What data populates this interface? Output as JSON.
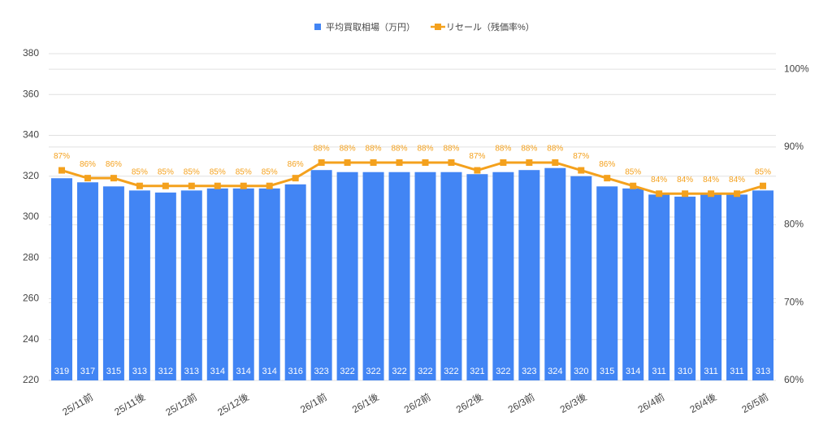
{
  "chart_data": {
    "type": "bar",
    "categories": [
      null,
      "25/11前",
      null,
      "25/11後",
      null,
      "25/12前",
      null,
      "25/12後",
      null,
      null,
      "26/1前",
      null,
      "26/1後",
      null,
      "26/2前",
      null,
      "26/2後",
      null,
      "26/3前",
      null,
      "26/3後",
      null,
      null,
      "26/4前",
      null,
      "26/4後",
      null,
      "26/5前"
    ],
    "series": [
      {
        "name": "平均買取相場（万円）",
        "color": "#4285f4",
        "type": "bar",
        "values": [
          319,
          317,
          315,
          313,
          312,
          313,
          314,
          314,
          314,
          316,
          323,
          322,
          322,
          322,
          322,
          322,
          321,
          322,
          323,
          324,
          320,
          315,
          314,
          311,
          310,
          311,
          311,
          313
        ]
      },
      {
        "name": "リセール（残価率%）",
        "color": "#f4a11d",
        "type": "line",
        "axis": "y2",
        "values": [
          87,
          86,
          86,
          85,
          85,
          85,
          85,
          85,
          85,
          86,
          88,
          88,
          88,
          88,
          88,
          88,
          87,
          88,
          88,
          88,
          87,
          86,
          85,
          84,
          84,
          84,
          84,
          85
        ],
        "value_labels": [
          "87%",
          "86%",
          "86%",
          "85%",
          "85%",
          "85%",
          "85%",
          "85%",
          "85%",
          "86%",
          "88%",
          "88%",
          "88%",
          "88%",
          "88%",
          "88%",
          "87%",
          "88%",
          "88%",
          "88%",
          "87%",
          "86%",
          "85%",
          "84%",
          "84%",
          "84%",
          "84%",
          "85%"
        ]
      }
    ],
    "ylim": [
      220,
      380
    ],
    "yticks": [
      220,
      240,
      260,
      280,
      300,
      320,
      340,
      360,
      380
    ],
    "y2lim": [
      60,
      102
    ],
    "y2ticks": [
      {
        "value": 60,
        "label": "60%"
      },
      {
        "value": 70,
        "label": "70%"
      },
      {
        "value": 80,
        "label": "80%"
      },
      {
        "value": 90,
        "label": "90%"
      },
      {
        "value": 100,
        "label": "100%"
      }
    ],
    "grid": true,
    "legend": "top"
  }
}
